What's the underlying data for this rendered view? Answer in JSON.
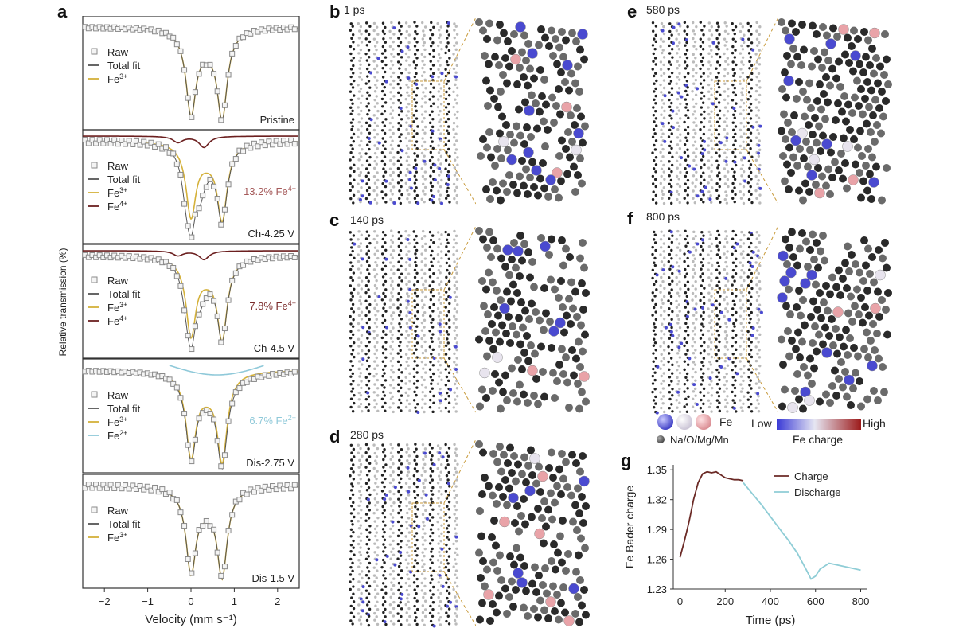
{
  "figure": {
    "panels": {
      "a": "a",
      "b": "b",
      "c": "c",
      "d": "d",
      "e": "e",
      "f": "f",
      "g": "g"
    },
    "mossbauer": {
      "ylabel": "Relative transmission (%)",
      "xlabel": "Velocity (mm s⁻¹)",
      "xticks": [
        "−2",
        "−1",
        "0",
        "1",
        "2"
      ],
      "colors": {
        "raw": "#8a8a8a",
        "total": "#555555",
        "fe3": "#d4b13a",
        "fe4": "#6b1f1f",
        "fe2": "#8fc9d9"
      },
      "subpanels": [
        {
          "state": "Pristine",
          "legend": [
            {
              "key": "raw",
              "text": "Raw"
            },
            {
              "key": "total",
              "text": "Total fit"
            },
            {
              "key": "fe3",
              "text": "Fe",
              "sup": "3+"
            }
          ],
          "annotation": "",
          "annotation_color": ""
        },
        {
          "state": "Ch-4.25 V",
          "legend": [
            {
              "key": "raw",
              "text": "Raw"
            },
            {
              "key": "total",
              "text": "Total fit"
            },
            {
              "key": "fe3",
              "text": "Fe",
              "sup": "3+"
            },
            {
              "key": "fe4",
              "text": "Fe",
              "sup": "4+"
            }
          ],
          "annotation": "13.2% Fe",
          "annotation_sup": "4+",
          "annotation_color": "#a55a5a"
        },
        {
          "state": "Ch-4.5 V",
          "legend": [
            {
              "key": "raw",
              "text": "Raw"
            },
            {
              "key": "total",
              "text": "Total fit"
            },
            {
              "key": "fe3",
              "text": "Fe",
              "sup": "3+"
            },
            {
              "key": "fe4",
              "text": "Fe",
              "sup": "4+"
            }
          ],
          "annotation": "7.8% Fe",
          "annotation_sup": "4+",
          "annotation_color": "#7a2a2a"
        },
        {
          "state": "Dis-2.75 V",
          "legend": [
            {
              "key": "raw",
              "text": "Raw"
            },
            {
              "key": "total",
              "text": "Total fit"
            },
            {
              "key": "fe3",
              "text": "Fe",
              "sup": "3+"
            },
            {
              "key": "fe2",
              "text": "Fe",
              "sup": "2+"
            }
          ],
          "annotation": "6.7% Fe",
          "annotation_sup": "2+",
          "annotation_color": "#8fc9d9"
        },
        {
          "state": "Dis-1.5 V",
          "legend": [
            {
              "key": "raw",
              "text": "Raw"
            },
            {
              "key": "total",
              "text": "Total fit"
            },
            {
              "key": "fe3",
              "text": "Fe",
              "sup": "3+"
            }
          ],
          "annotation": "",
          "annotation_color": ""
        }
      ]
    },
    "snapshots": [
      {
        "panel": "b",
        "time": "1 ps"
      },
      {
        "panel": "c",
        "time": "140 ps"
      },
      {
        "panel": "d",
        "time": "280 ps"
      },
      {
        "panel": "e",
        "time": "580 ps"
      },
      {
        "panel": "f",
        "time": "800 ps"
      }
    ],
    "atom_legend": {
      "fe_label": "Fe",
      "other_label": "Na/O/Mg/Mn",
      "scale_low": "Low",
      "scale_high": "High",
      "scale_title": "Fe charge",
      "colors": {
        "fe_low": "#4a4ad0",
        "fe_mid": "#e8e4ee",
        "fe_high": "#e9a3a8",
        "other": "#6e6e6e"
      }
    }
  },
  "chart_data": {
    "type": "line",
    "title": "",
    "xlabel": "Time (ps)",
    "ylabel": "Fe Bader charge",
    "xlim": [
      -30,
      830
    ],
    "ylim": [
      1.23,
      1.355
    ],
    "xticks": [
      0,
      200,
      400,
      600,
      800
    ],
    "yticks": [
      1.23,
      1.26,
      1.29,
      1.32,
      1.35
    ],
    "ytick_labels": [
      "1.23",
      "1.26",
      "1.29",
      "1.32",
      "1.35"
    ],
    "legend_position": "top-right",
    "series": [
      {
        "name": "Charge",
        "color": "#6b2a26",
        "x": [
          0,
          20,
          40,
          60,
          80,
          100,
          120,
          140,
          160,
          180,
          200,
          220,
          240,
          260,
          280
        ],
        "y": [
          1.262,
          1.279,
          1.298,
          1.32,
          1.337,
          1.346,
          1.348,
          1.347,
          1.348,
          1.345,
          1.342,
          1.341,
          1.34,
          1.34,
          1.339
        ]
      },
      {
        "name": "Discharge",
        "color": "#8fcdd6",
        "x": [
          280,
          320,
          360,
          400,
          440,
          480,
          520,
          560,
          580,
          600,
          620,
          660,
          700,
          740,
          780,
          800
        ],
        "y": [
          1.337,
          1.326,
          1.315,
          1.303,
          1.291,
          1.279,
          1.266,
          1.249,
          1.24,
          1.243,
          1.25,
          1.256,
          1.254,
          1.252,
          1.25,
          1.249
        ]
      }
    ]
  }
}
